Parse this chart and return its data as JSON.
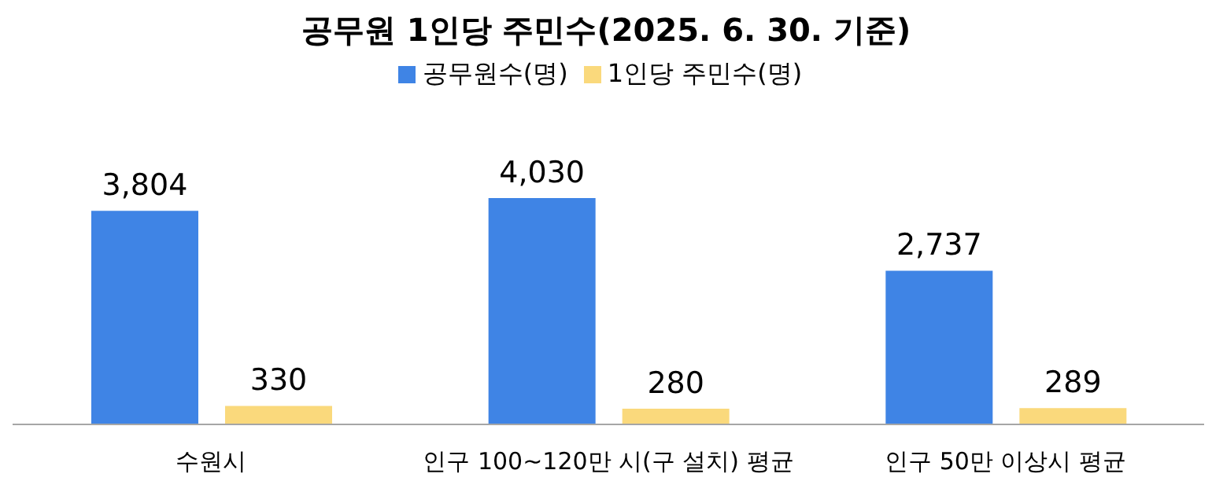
{
  "chart_data": {
    "type": "bar",
    "title": "공무원 1인당 주민수(2025.  6. 30. 기준)",
    "categories": [
      "수원시",
      "인구 100~120만 시(구 설치) 평균",
      "인구 50만 이상시 평균"
    ],
    "series": [
      {
        "name": "공무원수(명)",
        "color": "#3f84e5",
        "values": [
          3804,
          4030,
          2737
        ],
        "value_labels": [
          "3,804",
          "4,030",
          "2,737"
        ]
      },
      {
        "name": "1인당 주민수(명)",
        "color": "#fad97c",
        "values": [
          330,
          280,
          289
        ],
        "value_labels": [
          "330",
          "280",
          "289"
        ]
      }
    ],
    "legend": "top",
    "grid": false
  }
}
